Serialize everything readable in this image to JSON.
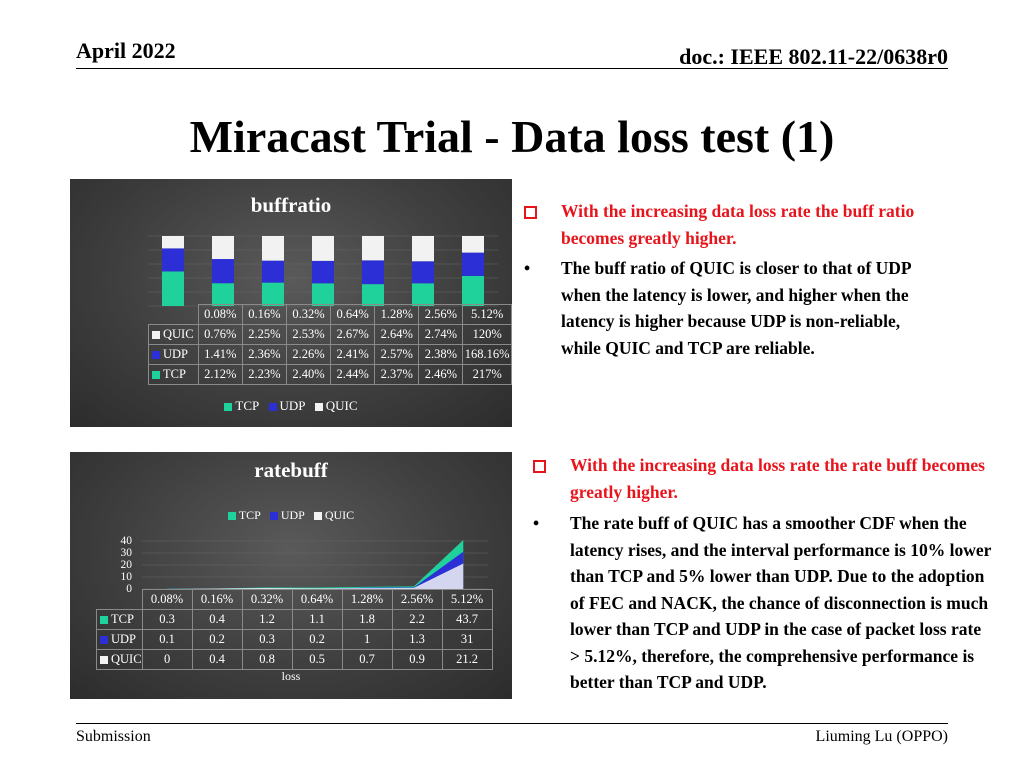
{
  "header": {
    "date": "April 2022",
    "doc": "doc.: IEEE 802.11-22/0638r0"
  },
  "title": "Miracast Trial - Data loss test (1)",
  "chart1": {
    "title": "buffratio",
    "categories": [
      "0.08%",
      "0.16%",
      "0.32%",
      "0.64%",
      "1.28%",
      "2.56%",
      "5.12%"
    ],
    "rows": [
      {
        "name": "QUIC",
        "values": [
          "0.76%",
          "2.25%",
          "2.53%",
          "2.67%",
          "2.64%",
          "2.74%",
          "120%"
        ]
      },
      {
        "name": "UDP",
        "values": [
          "1.41%",
          "2.36%",
          "2.26%",
          "2.41%",
          "2.57%",
          "2.38%",
          "168.16%"
        ]
      },
      {
        "name": "TCP",
        "values": [
          "2.12%",
          "2.23%",
          "2.40%",
          "2.44%",
          "2.37%",
          "2.46%",
          "217%"
        ]
      }
    ],
    "legend": [
      "TCP",
      "UDP",
      "QUIC"
    ]
  },
  "chart2": {
    "title": "ratebuff",
    "legend": [
      "TCP",
      "UDP",
      "QUIC"
    ],
    "yticks": [
      "40",
      "30",
      "20",
      "10",
      "0"
    ],
    "categories": [
      "0.08%",
      "0.16%",
      "0.32%",
      "0.64%",
      "1.28%",
      "2.56%",
      "5.12%"
    ],
    "rows": [
      {
        "name": "TCP",
        "values": [
          "0.3",
          "0.4",
          "1.2",
          "1.1",
          "1.8",
          "2.2",
          "43.7"
        ]
      },
      {
        "name": "UDP",
        "values": [
          "0.1",
          "0.2",
          "0.3",
          "0.2",
          "1",
          "1.3",
          "31"
        ]
      },
      {
        "name": "QUIC",
        "values": [
          "0",
          "0.4",
          "0.8",
          "0.5",
          "0.7",
          "0.9",
          "21.2"
        ]
      }
    ],
    "xlabel": "loss"
  },
  "chart_data": [
    {
      "type": "bar",
      "title": "buffratio",
      "stacked": true,
      "normalized": true,
      "categories": [
        "0.08%",
        "0.16%",
        "0.32%",
        "0.64%",
        "1.28%",
        "2.56%",
        "5.12%"
      ],
      "series": [
        {
          "name": "TCP",
          "values": [
            2.12,
            2.23,
            2.4,
            2.44,
            2.37,
            2.46,
            217
          ]
        },
        {
          "name": "UDP",
          "values": [
            1.41,
            2.36,
            2.26,
            2.41,
            2.57,
            2.38,
            168.16
          ]
        },
        {
          "name": "QUIC",
          "values": [
            0.76,
            2.25,
            2.53,
            2.67,
            2.64,
            2.74,
            120
          ]
        }
      ],
      "legend": "bottom"
    },
    {
      "type": "area",
      "title": "ratebuff",
      "xlabel": "loss",
      "ylim": [
        0,
        40
      ],
      "categories": [
        "0.08%",
        "0.16%",
        "0.32%",
        "0.64%",
        "1.28%",
        "2.56%",
        "5.12%"
      ],
      "series": [
        {
          "name": "TCP",
          "values": [
            0.3,
            0.4,
            1.2,
            1.1,
            1.8,
            2.2,
            43.7
          ]
        },
        {
          "name": "UDP",
          "values": [
            0.1,
            0.2,
            0.3,
            0.2,
            1,
            1.3,
            31
          ]
        },
        {
          "name": "QUIC",
          "values": [
            0,
            0.4,
            0.8,
            0.5,
            0.7,
            0.9,
            21.2
          ]
        }
      ],
      "legend": "top"
    }
  ],
  "colors": {
    "TCP": "#1fd19a",
    "UDP": "#2c2ed6",
    "QUIC": "#f2f2f2",
    "accent": "#e8141c"
  },
  "bullets1": [
    {
      "text": "With the increasing data loss rate the buff ratio becomes greatly higher."
    },
    {
      "marker": "•",
      "text": "The buff ratio of QUIC is closer to that of UDP when the latency is lower, and higher when the latency is higher because UDP is non-reliable, while QUIC and TCP are reliable."
    }
  ],
  "bullets2": [
    {
      "text": "With the increasing data loss rate the rate buff becomes greatly higher."
    },
    {
      "marker": "•",
      "text": "The rate buff of QUIC has a smoother CDF when the latency rises, and the interval performance is 10% lower than TCP and 5% lower than UDP. Due to the adoption of FEC and NACK, the chance of disconnection is much lower than TCP and UDP in the case of packet loss rate > 5.12%, therefore, the comprehensive performance is better than TCP and UDP."
    }
  ],
  "footer": {
    "left": "Submission",
    "right": "Liuming Lu (OPPO)"
  }
}
